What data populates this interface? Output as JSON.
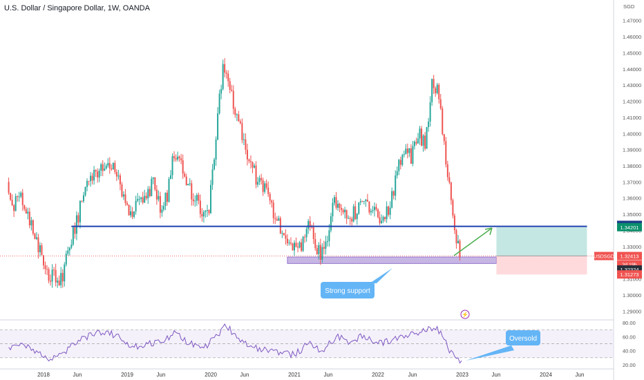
{
  "header": {
    "symbol_title": "U.S. Dollar / Singapore Dollar, 1W, OANDA"
  },
  "price_axis": {
    "currency": "SGD",
    "ticks": [
      "1.47000",
      "1.46000",
      "1.45000",
      "1.44000",
      "1.43000",
      "1.42000",
      "1.41000",
      "1.40000",
      "1.39000",
      "1.38000",
      "1.37000",
      "1.36000",
      "1.35000",
      "1.34000",
      "1.33000",
      "1.32000",
      "1.31000",
      "1.30000",
      "1.29000"
    ],
    "labels": [
      {
        "text": "1.34343",
        "price": 1.34343,
        "color": "#1e3a8a"
      },
      {
        "text": "1.34201",
        "price": 1.34201,
        "color": "#0a8f6c"
      },
      {
        "text": "USDSGD",
        "price": 1.32413,
        "color": "#f05350",
        "kind": "symbol"
      },
      {
        "text": "1.32413",
        "price": 1.32413,
        "color": "#f05350"
      },
      {
        "text": "2d 19h",
        "price": 1.319,
        "color": "#f05350",
        "kind": "countdown"
      },
      {
        "text": "1.32324",
        "price": 1.3158,
        "color": "#2a2e39"
      },
      {
        "text": "1.31273",
        "price": 1.31273,
        "color": "#f05350"
      }
    ]
  },
  "rsi_axis": {
    "ticks": [
      "80.00",
      "60.00",
      "40.00",
      "20.00"
    ]
  },
  "time_axis": {
    "ticks": [
      "2018",
      "Jun",
      "2019",
      "Jun",
      "2020",
      "Jun",
      "2021",
      "Jun",
      "2022",
      "Jun",
      "2023",
      "Jun",
      "2024",
      "Jun"
    ]
  },
  "annotations": {
    "support_label": "Strong support",
    "oversold_label": "Oversold"
  },
  "colors": {
    "up": "#26a69a",
    "down": "#ef5350",
    "resistance_line": "#1e40af",
    "support_zone": "#b39ddb",
    "rsi_line": "#7e57c2",
    "target_zone": "#b2dfdb",
    "stop_zone": "#ffcdd2",
    "callout": "#64b5f6",
    "arrow": "#4caf50"
  },
  "chart_data": {
    "type": "candlestick",
    "title": "U.S. Dollar / Singapore Dollar, 1W, OANDA",
    "series": [
      {
        "name": "USDSGD",
        "points": [
          {
            "x": "2017-08",
            "y": 1.37
          },
          {
            "x": "2017-09",
            "y": 1.355
          },
          {
            "x": "2017-10",
            "y": 1.362
          },
          {
            "x": "2017-11",
            "y": 1.35
          },
          {
            "x": "2017-12",
            "y": 1.336
          },
          {
            "x": "2018-01",
            "y": 1.325
          },
          {
            "x": "2018-02",
            "y": 1.312
          },
          {
            "x": "2018-03",
            "y": 1.31
          },
          {
            "x": "2018-04",
            "y": 1.312
          },
          {
            "x": "2018-05",
            "y": 1.33
          },
          {
            "x": "2018-06",
            "y": 1.345
          },
          {
            "x": "2018-07",
            "y": 1.362
          },
          {
            "x": "2018-08",
            "y": 1.372
          },
          {
            "x": "2018-09",
            "y": 1.375
          },
          {
            "x": "2018-10",
            "y": 1.383
          },
          {
            "x": "2018-11",
            "y": 1.38
          },
          {
            "x": "2018-12",
            "y": 1.37
          },
          {
            "x": "2019-01",
            "y": 1.355
          },
          {
            "x": "2019-02",
            "y": 1.352
          },
          {
            "x": "2019-03",
            "y": 1.357
          },
          {
            "x": "2019-04",
            "y": 1.357
          },
          {
            "x": "2019-05",
            "y": 1.373
          },
          {
            "x": "2019-06",
            "y": 1.355
          },
          {
            "x": "2019-07",
            "y": 1.36
          },
          {
            "x": "2019-08",
            "y": 1.389
          },
          {
            "x": "2019-09",
            "y": 1.38
          },
          {
            "x": "2019-10",
            "y": 1.365
          },
          {
            "x": "2019-11",
            "y": 1.362
          },
          {
            "x": "2019-12",
            "y": 1.352
          },
          {
            "x": "2020-01",
            "y": 1.355
          },
          {
            "x": "2020-02",
            "y": 1.395
          },
          {
            "x": "2020-03",
            "y": 1.445
          },
          {
            "x": "2020-04",
            "y": 1.425
          },
          {
            "x": "2020-05",
            "y": 1.413
          },
          {
            "x": "2020-06",
            "y": 1.395
          },
          {
            "x": "2020-07",
            "y": 1.38
          },
          {
            "x": "2020-08",
            "y": 1.371
          },
          {
            "x": "2020-09",
            "y": 1.366
          },
          {
            "x": "2020-10",
            "y": 1.355
          },
          {
            "x": "2020-11",
            "y": 1.345
          },
          {
            "x": "2020-12",
            "y": 1.333
          },
          {
            "x": "2021-01",
            "y": 1.328
          },
          {
            "x": "2021-02",
            "y": 1.328
          },
          {
            "x": "2021-03",
            "y": 1.343
          },
          {
            "x": "2021-04",
            "y": 1.335
          },
          {
            "x": "2021-05",
            "y": 1.325
          },
          {
            "x": "2021-06",
            "y": 1.337
          },
          {
            "x": "2021-07",
            "y": 1.358
          },
          {
            "x": "2021-08",
            "y": 1.355
          },
          {
            "x": "2021-09",
            "y": 1.35
          },
          {
            "x": "2021-10",
            "y": 1.35
          },
          {
            "x": "2021-11",
            "y": 1.362
          },
          {
            "x": "2021-12",
            "y": 1.355
          },
          {
            "x": "2022-01",
            "y": 1.35
          },
          {
            "x": "2022-02",
            "y": 1.345
          },
          {
            "x": "2022-03",
            "y": 1.355
          },
          {
            "x": "2022-04",
            "y": 1.375
          },
          {
            "x": "2022-05",
            "y": 1.39
          },
          {
            "x": "2022-06",
            "y": 1.385
          },
          {
            "x": "2022-07",
            "y": 1.4
          },
          {
            "x": "2022-08",
            "y": 1.393
          },
          {
            "x": "2022-09",
            "y": 1.43
          },
          {
            "x": "2022-10",
            "y": 1.425
          },
          {
            "x": "2022-11",
            "y": 1.38
          },
          {
            "x": "2022-12",
            "y": 1.35
          },
          {
            "x": "2023-01",
            "y": 1.322
          }
        ]
      },
      {
        "name": "RSI",
        "points": [
          {
            "x": "2017-08",
            "y": 45
          },
          {
            "x": "2017-10",
            "y": 50
          },
          {
            "x": "2017-12",
            "y": 40
          },
          {
            "x": "2018-02",
            "y": 28
          },
          {
            "x": "2018-04",
            "y": 38
          },
          {
            "x": "2018-06",
            "y": 55
          },
          {
            "x": "2018-08",
            "y": 62
          },
          {
            "x": "2018-10",
            "y": 68
          },
          {
            "x": "2018-12",
            "y": 58
          },
          {
            "x": "2019-02",
            "y": 45
          },
          {
            "x": "2019-04",
            "y": 50
          },
          {
            "x": "2019-06",
            "y": 52
          },
          {
            "x": "2019-08",
            "y": 66
          },
          {
            "x": "2019-10",
            "y": 50
          },
          {
            "x": "2019-12",
            "y": 44
          },
          {
            "x": "2020-02",
            "y": 62
          },
          {
            "x": "2020-03",
            "y": 78
          },
          {
            "x": "2020-05",
            "y": 58
          },
          {
            "x": "2020-07",
            "y": 45
          },
          {
            "x": "2020-09",
            "y": 42
          },
          {
            "x": "2020-11",
            "y": 38
          },
          {
            "x": "2021-01",
            "y": 34
          },
          {
            "x": "2021-03",
            "y": 50
          },
          {
            "x": "2021-05",
            "y": 40
          },
          {
            "x": "2021-07",
            "y": 60
          },
          {
            "x": "2021-09",
            "y": 52
          },
          {
            "x": "2021-11",
            "y": 62
          },
          {
            "x": "2022-01",
            "y": 50
          },
          {
            "x": "2022-03",
            "y": 55
          },
          {
            "x": "2022-05",
            "y": 62
          },
          {
            "x": "2022-07",
            "y": 66
          },
          {
            "x": "2022-09",
            "y": 72
          },
          {
            "x": "2022-10",
            "y": 68
          },
          {
            "x": "2022-11",
            "y": 45
          },
          {
            "x": "2022-12",
            "y": 32
          },
          {
            "x": "2023-01",
            "y": 26
          }
        ]
      }
    ],
    "ylim": [
      1.285,
      1.475
    ],
    "rsi_ylim": [
      20,
      80
    ],
    "horizontal_lines": [
      {
        "price": 1.3425,
        "from": "2018-05",
        "to": "2024-07"
      }
    ],
    "zones": [
      {
        "name": "support",
        "from": "2020-12",
        "to": "2023-06",
        "low": 1.3195,
        "high": 1.3235
      },
      {
        "name": "target",
        "from": "2023-06",
        "to": "2024-07",
        "low": 1.3242,
        "high": 1.342
      },
      {
        "name": "stop",
        "from": "2023-06",
        "to": "2024-07",
        "low": 1.3127,
        "high": 1.3242
      }
    ]
  }
}
